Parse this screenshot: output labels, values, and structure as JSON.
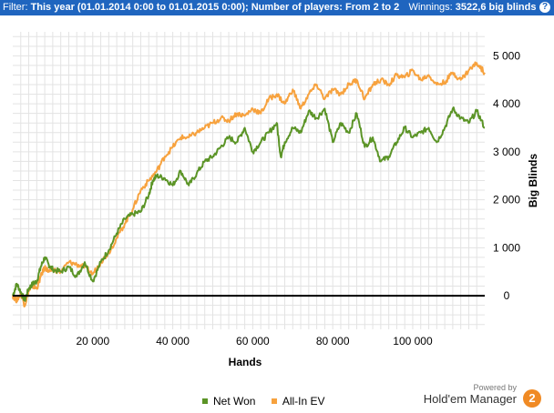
{
  "filter": {
    "label": "Filter:",
    "text": "This year (01.01.2014 0:00 to 01.01.2015 0:00); Number of players: From 2 to 2",
    "winnings_label": "Winnings:",
    "winnings_value": "3522,6 big blinds"
  },
  "colors": {
    "net_won": "#5b9426",
    "all_in_ev": "#f7a23e",
    "zero_line": "#000000",
    "grid": "#e3e3e3",
    "filter_bar": "#1f65bf",
    "logo": "#f08a24"
  },
  "legend": {
    "net_won": "Net Won",
    "all_in_ev": "All-In EV"
  },
  "brand": {
    "powered_by": "Powered by",
    "name": "Hold'em Manager",
    "logo_glyph": "2"
  },
  "chart_data": {
    "type": "line",
    "xlabel": "Hands",
    "ylabel": "Big Blinds",
    "xlim": [
      0,
      118000
    ],
    "ylim": [
      -700,
      5500
    ],
    "x_ticks": [
      20000,
      40000,
      60000,
      80000,
      100000
    ],
    "x_tick_labels": [
      "20 000",
      "40 000",
      "60 000",
      "80 000",
      "100 000"
    ],
    "y_ticks": [
      0,
      1000,
      2000,
      3000,
      4000,
      5000
    ],
    "y_tick_labels": [
      "0",
      "1 000",
      "2 000",
      "3 000",
      "4 000",
      "5 000"
    ],
    "y_axis_position": "right",
    "grid": true,
    "legend_position": "bottom",
    "series": [
      {
        "name": "Net Won",
        "x": [
          0,
          1000,
          2000,
          3000,
          4000,
          5000,
          6000,
          7000,
          8000,
          9000,
          10000,
          12000,
          14000,
          16000,
          18000,
          20000,
          22000,
          24000,
          26000,
          28000,
          30000,
          32000,
          34000,
          35000,
          36000,
          38000,
          40000,
          42000,
          44000,
          46000,
          48000,
          50000,
          52000,
          54000,
          56000,
          58000,
          60000,
          62000,
          64000,
          66000,
          67000,
          68000,
          70000,
          72000,
          74000,
          76000,
          78000,
          80000,
          82000,
          84000,
          86000,
          88000,
          90000,
          92000,
          94000,
          96000,
          98000,
          100000,
          102000,
          104000,
          106000,
          108000,
          110000,
          112000,
          114000,
          116000,
          118000
        ],
        "values": [
          0,
          250,
          80,
          -100,
          150,
          250,
          300,
          600,
          800,
          650,
          550,
          500,
          600,
          400,
          700,
          300,
          700,
          950,
          1300,
          1600,
          1700,
          1750,
          2100,
          2400,
          2500,
          2450,
          2300,
          2600,
          2300,
          2550,
          2800,
          2900,
          3100,
          3300,
          3200,
          3500,
          3000,
          3200,
          3400,
          3600,
          2900,
          3200,
          3500,
          3400,
          3850,
          3700,
          3900,
          3200,
          3600,
          3400,
          3800,
          3100,
          3300,
          2800,
          2900,
          3200,
          3500,
          3300,
          3400,
          3500,
          3200,
          3500,
          3900,
          3700,
          3600,
          3850,
          3500
        ]
      },
      {
        "name": "All-In EV",
        "x": [
          0,
          1000,
          2000,
          3000,
          4000,
          5000,
          6000,
          7000,
          8000,
          9000,
          10000,
          12000,
          14000,
          16000,
          18000,
          20000,
          22000,
          24000,
          26000,
          28000,
          30000,
          32000,
          34000,
          36000,
          38000,
          40000,
          42000,
          44000,
          46000,
          48000,
          50000,
          52000,
          54000,
          56000,
          58000,
          60000,
          62000,
          64000,
          66000,
          68000,
          70000,
          72000,
          74000,
          76000,
          78000,
          80000,
          82000,
          84000,
          86000,
          88000,
          90000,
          92000,
          94000,
          96000,
          98000,
          100000,
          102000,
          104000,
          106000,
          108000,
          110000,
          112000,
          114000,
          116000,
          118000
        ],
        "values": [
          0,
          -100,
          50,
          -200,
          100,
          200,
          150,
          400,
          600,
          500,
          550,
          500,
          700,
          650,
          600,
          450,
          700,
          900,
          1200,
          1500,
          1800,
          2200,
          2400,
          2600,
          2900,
          3100,
          3300,
          3300,
          3400,
          3500,
          3600,
          3700,
          3650,
          3800,
          3750,
          3900,
          3800,
          4100,
          4200,
          4000,
          4300,
          3900,
          4200,
          4400,
          4100,
          4300,
          4200,
          4400,
          4500,
          4100,
          4400,
          4500,
          4400,
          4600,
          4550,
          4700,
          4500,
          4600,
          4400,
          4450,
          4650,
          4500,
          4700,
          4850,
          4650
        ]
      }
    ]
  }
}
